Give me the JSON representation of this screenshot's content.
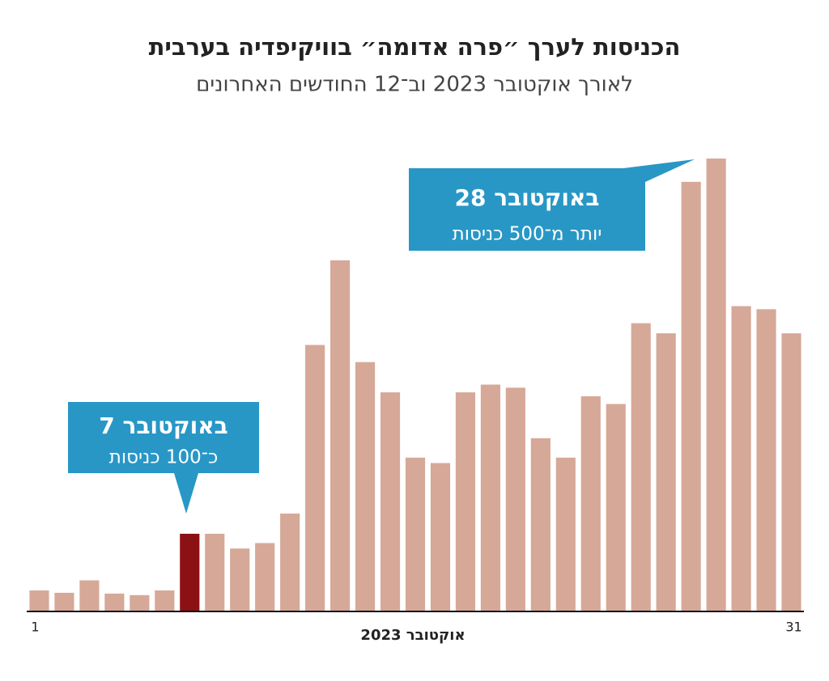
{
  "chart_data": {
    "type": "bar",
    "title": "הכניסות לערך ״פרה אדומה״ בוויקיפדיה בערבית",
    "subtitle": "לאורך אוקטובר 2023 וב־12 החודשים האחרונים",
    "x_label": "אוקטובר 2023",
    "categories": [
      "1",
      null,
      null,
      null,
      null,
      null,
      null,
      null,
      null,
      null,
      null,
      null,
      null,
      null,
      null,
      null,
      null,
      null,
      null,
      null,
      null,
      null,
      null,
      null,
      null,
      null,
      null,
      null,
      null,
      null,
      "31"
    ],
    "values": [
      27,
      24,
      40,
      23,
      21,
      27,
      100,
      100,
      81,
      88,
      126,
      343,
      452,
      321,
      282,
      198,
      191,
      282,
      292,
      288,
      223,
      198,
      277,
      267,
      371,
      358,
      553,
      583,
      393,
      389,
      358
    ],
    "colors": [
      "#d6a898",
      "#d6a898",
      "#d6a898",
      "#d6a898",
      "#d6a898",
      "#d6a898",
      "#8b1114",
      "#d6a898",
      "#d6a898",
      "#d6a898",
      "#d6a898",
      "#d6a898",
      "#d6a898",
      "#d6a898",
      "#d6a898",
      "#d6a898",
      "#d6a898",
      "#d6a898",
      "#d6a898",
      "#d6a898",
      "#d6a898",
      "#d6a898",
      "#d6a898",
      "#d6a898",
      "#d6a898",
      "#d6a898",
      "#d6a898",
      "#d6a898",
      "#d6a898",
      "#d6a898",
      "#d6a898"
    ],
    "annotations": [
      {
        "title": "7 באוקטובר",
        "text": "כ־100 כניסות"
      },
      {
        "title": "28 באוקטובר",
        "text": "יותר מ־500 כניסות"
      }
    ]
  }
}
